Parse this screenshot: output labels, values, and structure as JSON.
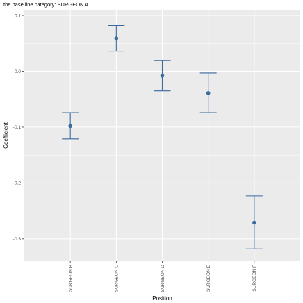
{
  "chart_data": {
    "type": "errorbar",
    "title": "the base line category: SURGEON A",
    "xlabel": "Position",
    "ylabel": "Coefficient",
    "categories": [
      "SURGEON B",
      "SURGEON C",
      "SURGEON D",
      "SURGEON E",
      "SURGEON F"
    ],
    "estimate": [
      -0.098,
      0.059,
      -0.008,
      -0.039,
      -0.271
    ],
    "lower": [
      -0.121,
      0.036,
      -0.035,
      -0.074,
      -0.318
    ],
    "upper": [
      -0.074,
      0.082,
      0.019,
      -0.003,
      -0.223
    ],
    "yticks": [
      0.1,
      0.0,
      -0.1,
      -0.2,
      -0.3
    ],
    "ytick_labels": [
      "0.1",
      "0.0",
      "-0.1",
      "-0.2",
      "-0.3"
    ],
    "ylim": [
      -0.34,
      0.11
    ],
    "grid": true,
    "colors": {
      "series": "#3a6a9e",
      "panel": "#ebebeb",
      "grid": "#ffffff"
    }
  }
}
